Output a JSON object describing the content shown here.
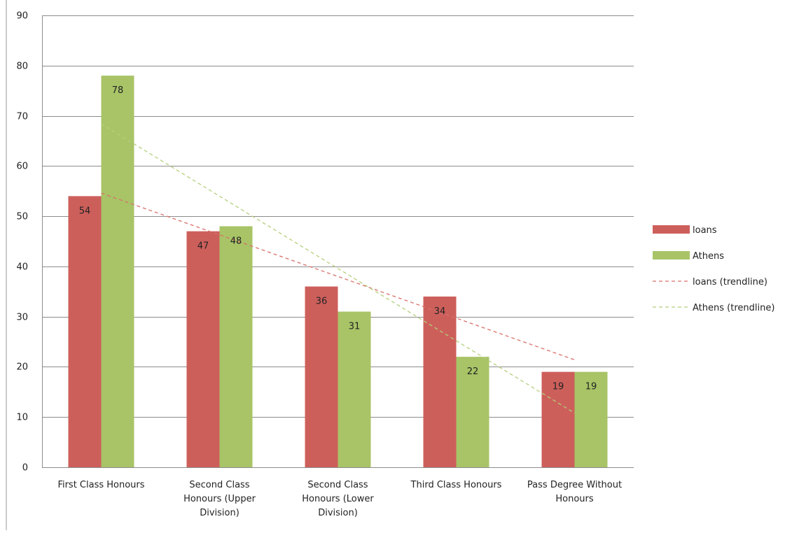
{
  "chart_data": {
    "type": "bar",
    "title": "",
    "xlabel": "",
    "ylabel": "",
    "categories": [
      [
        "First Class Honours"
      ],
      [
        "Second Class",
        "Honours (Upper",
        "Division)"
      ],
      [
        "Second Class",
        "Honours (Lower",
        "Division)"
      ],
      [
        "Third Class Honours"
      ],
      [
        "Pass Degree Without",
        "Honours"
      ]
    ],
    "series": [
      {
        "name": "loans",
        "values": [
          54,
          47,
          36,
          34,
          19
        ],
        "color": "#cd5f5b"
      },
      {
        "name": "Athens",
        "values": [
          78,
          48,
          31,
          22,
          19
        ],
        "color": "#a8c467"
      }
    ],
    "trendlines": [
      {
        "name": "loans (trendline)",
        "color": "#d9706b",
        "style": "dashed"
      },
      {
        "name": "Athens (trendline)",
        "color": "#b4cf7a",
        "style": "dashed"
      }
    ],
    "data_labels": true,
    "ylim": [
      0,
      90
    ],
    "yticks": [
      0,
      10,
      20,
      30,
      40,
      50,
      60,
      70,
      80,
      90
    ],
    "grid": true,
    "legend_position": "right",
    "colors": {
      "gridline": "#8c8c8c",
      "axis": "#8c8c8c"
    }
  }
}
